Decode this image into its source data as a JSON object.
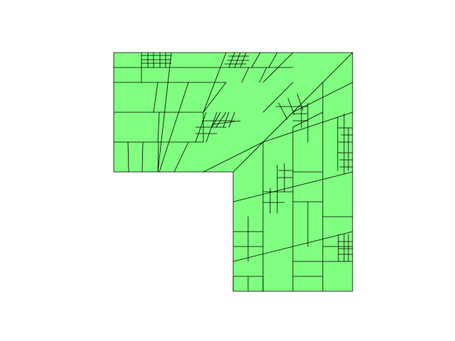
{
  "figure": {
    "kind": "adaptive quadrilateral mesh on L-shaped domain",
    "fill_color": "#80ff80",
    "edge_color": "#000000",
    "background": "#ffffff"
  }
}
